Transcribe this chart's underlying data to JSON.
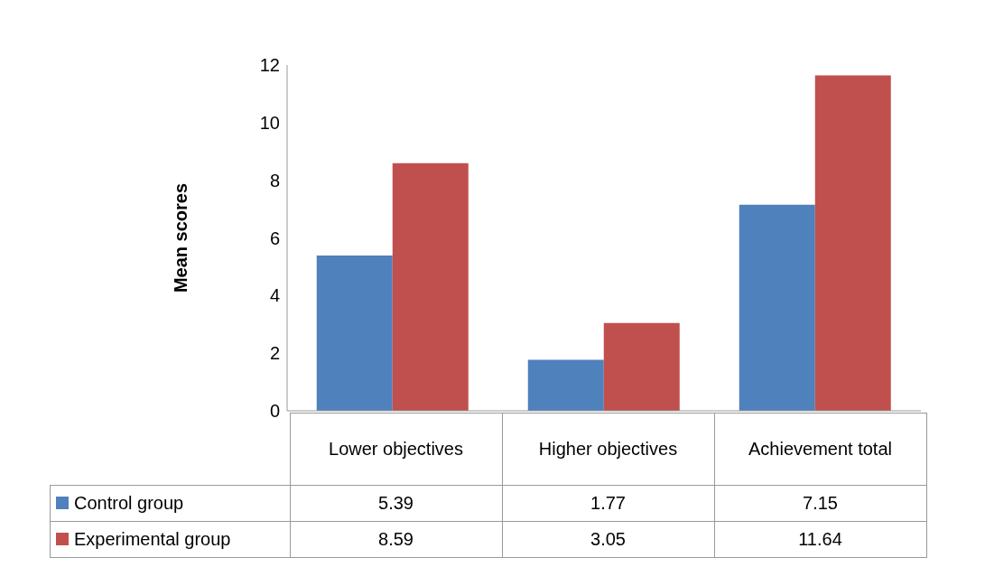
{
  "chart_data": {
    "type": "bar",
    "ylabel": "Mean scores",
    "categories": [
      "Lower objectives",
      "Higher objectives",
      "Achievement total"
    ],
    "series": [
      {
        "name": "Control group",
        "color": "#4f81bd",
        "values": [
          5.39,
          1.77,
          7.15
        ]
      },
      {
        "name": "Experimental group",
        "color": "#c0504d",
        "values": [
          8.59,
          3.05,
          11.64
        ]
      }
    ],
    "ylim": [
      0,
      12
    ],
    "yticks": [
      0,
      2,
      4,
      6,
      8,
      10,
      12
    ],
    "legend": "bottom",
    "data_labels": true
  }
}
